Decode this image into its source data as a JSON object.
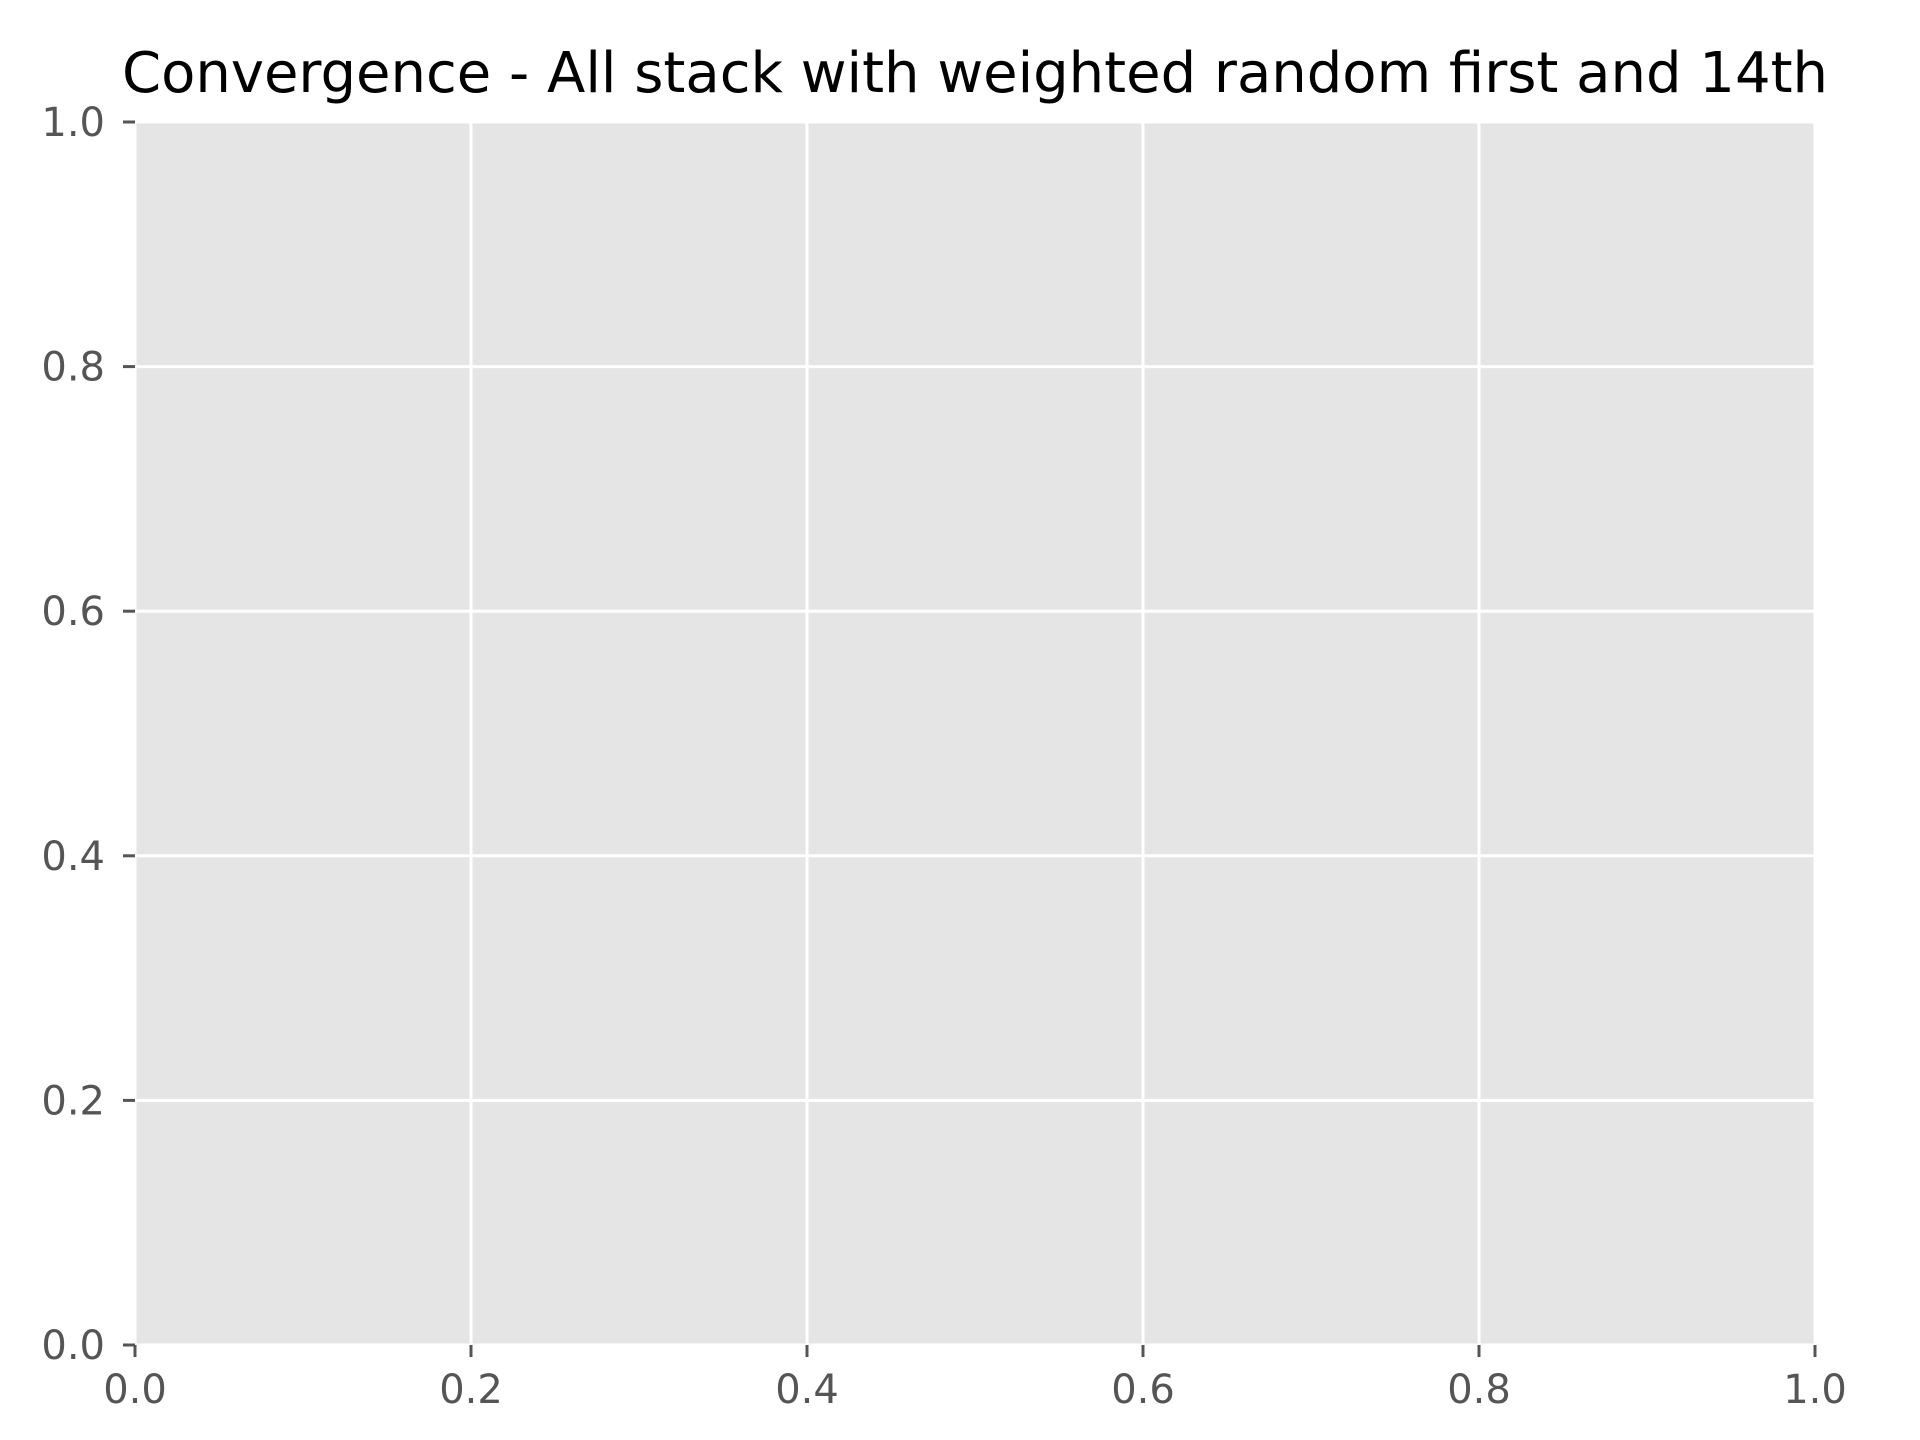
{
  "chart_data": {
    "type": "line",
    "title": "Convergence - All stack with weighted random first and 14th",
    "xlabel": "",
    "ylabel": "",
    "xlim": [
      0.0,
      1.0
    ],
    "ylim": [
      0.0,
      1.0
    ],
    "x_ticks": [
      0.0,
      0.2,
      0.4,
      0.6,
      0.8,
      1.0
    ],
    "y_ticks": [
      0.0,
      0.2,
      0.4,
      0.6,
      0.8,
      1.0
    ],
    "x_tick_labels": [
      "0.0",
      "0.2",
      "0.4",
      "0.6",
      "0.8",
      "1.0"
    ],
    "y_tick_labels": [
      "0.0",
      "0.2",
      "0.4",
      "0.6",
      "0.8",
      "1.0"
    ],
    "grid": true,
    "series": []
  },
  "colors": {
    "plot_background": "#e5e5e5",
    "grid": "#ffffff",
    "tick": "#555555",
    "tick_label": "#555555",
    "title": "#000000"
  }
}
